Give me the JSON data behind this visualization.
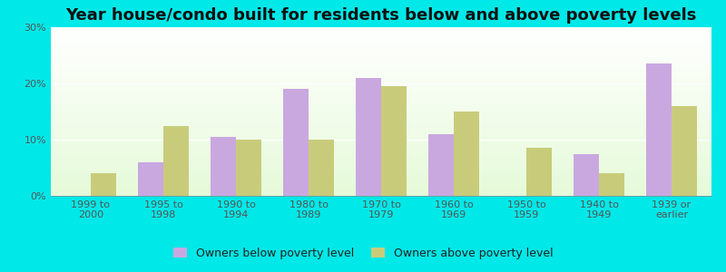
{
  "categories": [
    "1999 to\n2000",
    "1995 to\n1998",
    "1990 to\n1994",
    "1980 to\n1989",
    "1970 to\n1979",
    "1960 to\n1969",
    "1950 to\n1959",
    "1940 to\n1949",
    "1939 or\nearlier"
  ],
  "below_poverty": [
    0,
    6.0,
    10.5,
    19.0,
    21.0,
    11.0,
    0,
    7.5,
    23.5
  ],
  "above_poverty": [
    4.0,
    12.5,
    10.0,
    10.0,
    19.5,
    15.0,
    8.5,
    4.0,
    16.0
  ],
  "below_color": "#c9a8e0",
  "above_color": "#c8cc7a",
  "title": "Year house/condo built for residents below and above poverty levels",
  "ylim": [
    0,
    30
  ],
  "yticks": [
    0,
    10,
    20,
    30
  ],
  "ytick_labels": [
    "0%",
    "10%",
    "20%",
    "30%"
  ],
  "legend_below": "Owners below poverty level",
  "legend_above": "Owners above poverty level",
  "bg_outer": "#00e8e8",
  "title_fontsize": 13,
  "tick_fontsize": 8,
  "legend_fontsize": 9,
  "bar_width": 0.35
}
